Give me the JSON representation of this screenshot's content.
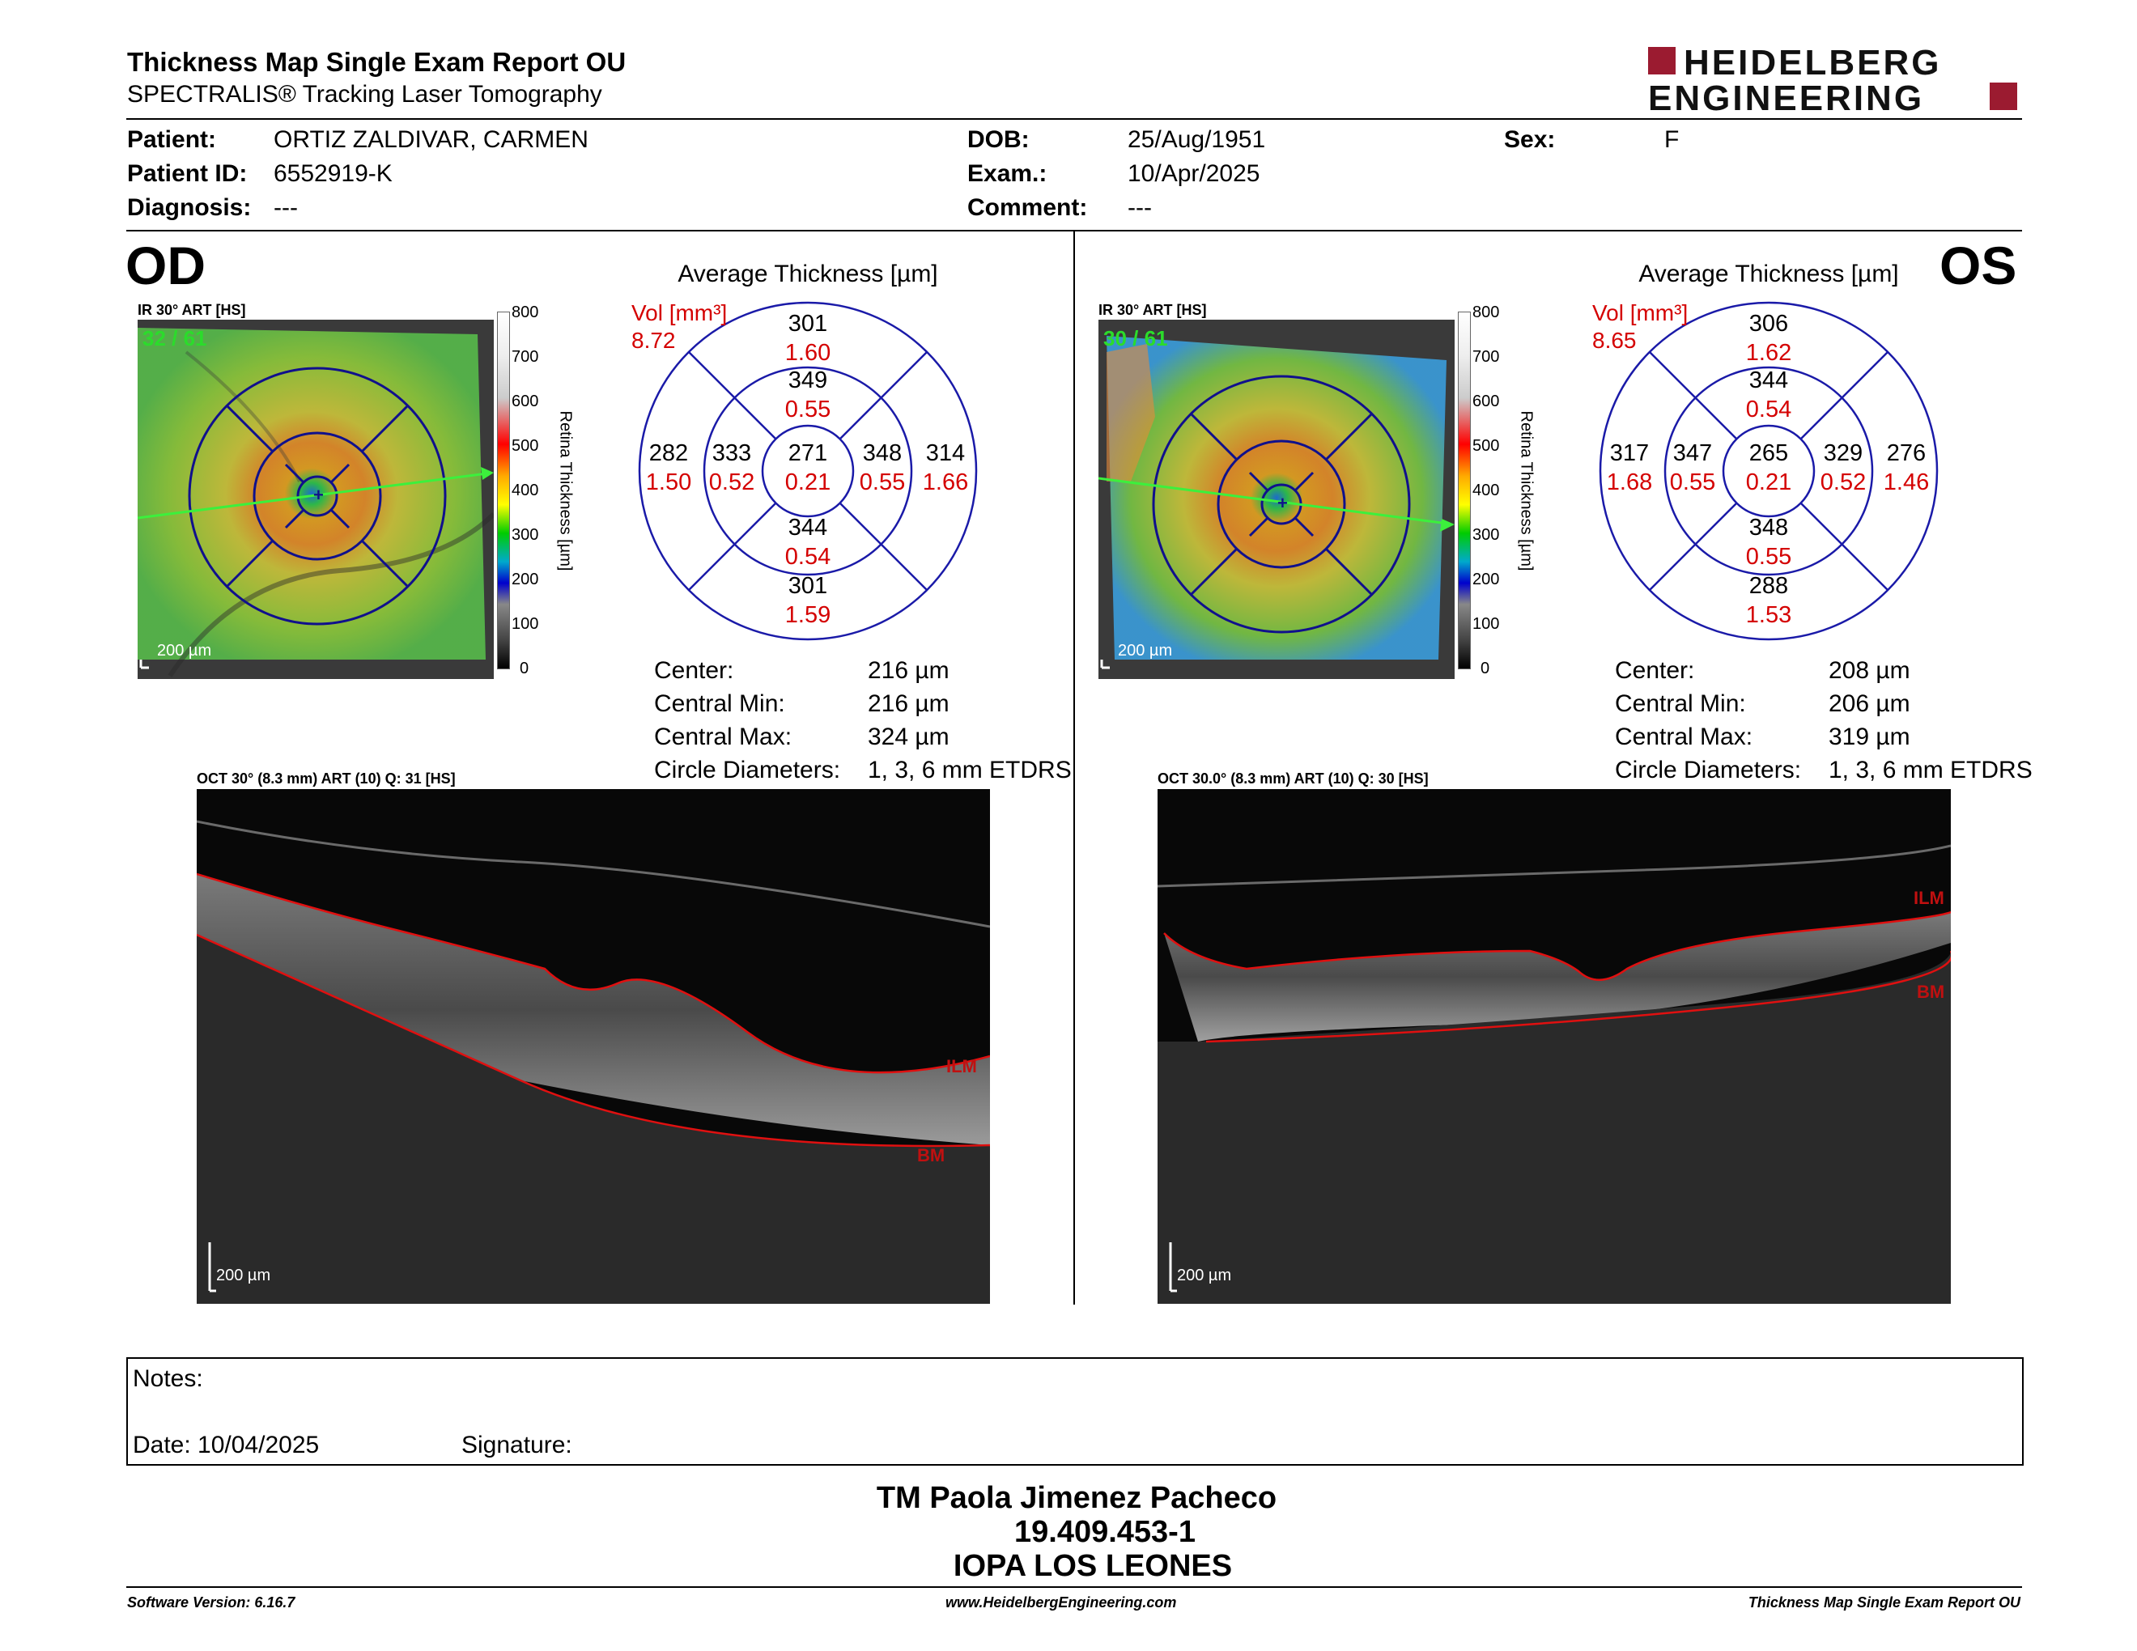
{
  "header": {
    "title": "Thickness Map Single Exam Report OU",
    "subtitle": "SPECTRALIS® Tracking Laser Tomography",
    "logo_line1": "HEIDELBERG",
    "logo_line2": "ENGINEERING"
  },
  "patient": {
    "patient_label": "Patient:",
    "patient_value": "ORTIZ ZALDIVAR, CARMEN",
    "id_label": "Patient ID:",
    "id_value": "6552919-K",
    "diag_label": "Diagnosis:",
    "diag_value": "---",
    "dob_label": "DOB:",
    "dob_value": "25/Aug/1951",
    "exam_label": "Exam.:",
    "exam_value": "10/Apr/2025",
    "comment_label": "Comment:",
    "comment_value": "---",
    "sex_label": "Sex:",
    "sex_value": "F"
  },
  "od": {
    "eye": "OD",
    "ir_title": "IR 30° ART [HS]",
    "frames": "32 / 61",
    "scale": "200 µm",
    "avg_title": "Average Thickness [µm]",
    "vol_label": "Vol [mm³]",
    "vol_total": "8.72",
    "etdrs": {
      "outer_sup": "301",
      "outer_sup_vol": "1.60",
      "inner_sup": "349",
      "inner_sup_vol": "0.55",
      "outer_temp": "282",
      "outer_temp_vol": "1.50",
      "inner_temp": "333",
      "inner_temp_vol": "0.52",
      "center": "271",
      "center_vol": "0.21",
      "inner_nas": "348",
      "inner_nas_vol": "0.55",
      "outer_nas": "314",
      "outer_nas_vol": "1.66",
      "inner_inf": "344",
      "inner_inf_vol": "0.54",
      "outer_inf": "301",
      "outer_inf_vol": "1.59"
    },
    "stats": {
      "center_label": "Center:",
      "center_value": "216 µm",
      "min_label": "Central Min:",
      "min_value": "216 µm",
      "max_label": "Central Max:",
      "max_value": "324 µm",
      "circ_label": "Circle Diameters:",
      "circ_value": "1, 3, 6 mm ETDRS"
    },
    "oct_title": "OCT 30° (8.3 mm) ART (10) Q: 31 [HS]",
    "oct_scale": "200 µm",
    "ilm": "ILM",
    "bm": "BM"
  },
  "os": {
    "eye": "OS",
    "ir_title": "IR 30° ART [HS]",
    "frames": "30 / 61",
    "scale": "200 µm",
    "avg_title": "Average Thickness [µm]",
    "vol_label": "Vol [mm³]",
    "vol_total": "8.65",
    "etdrs": {
      "outer_sup": "306",
      "outer_sup_vol": "1.62",
      "inner_sup": "344",
      "inner_sup_vol": "0.54",
      "outer_temp": "317",
      "outer_temp_vol": "1.68",
      "inner_temp": "347",
      "inner_temp_vol": "0.55",
      "center": "265",
      "center_vol": "0.21",
      "inner_nas": "329",
      "inner_nas_vol": "0.52",
      "outer_nas": "276",
      "outer_nas_vol": "1.46",
      "inner_inf": "348",
      "inner_inf_vol": "0.55",
      "outer_inf": "288",
      "outer_inf_vol": "1.53"
    },
    "stats": {
      "center_label": "Center:",
      "center_value": "208 µm",
      "min_label": "Central Min:",
      "min_value": "206 µm",
      "max_label": "Central Max:",
      "max_value": "319 µm",
      "circ_label": "Circle Diameters:",
      "circ_value": "1, 3, 6 mm ETDRS"
    },
    "oct_title": "OCT 30.0° (8.3 mm) ART (10) Q: 30 [HS]",
    "oct_scale": "200 µm",
    "ilm": "ILM",
    "bm": "BM"
  },
  "colorbar": {
    "ticks": [
      "800",
      "700",
      "600",
      "500",
      "400",
      "300",
      "200",
      "100",
      "0"
    ],
    "label": "Retina Thickness [µm]"
  },
  "notes": {
    "notes_label": "Notes:",
    "date_label": "Date: 10/04/2025",
    "signature_label": "Signature:"
  },
  "signer": {
    "name": "TM Paola Jimenez Pacheco",
    "rut": "19.409.453-1",
    "org": "IOPA LOS LEONES"
  },
  "footer": {
    "version": "Software Version: 6.16.7",
    "website": "www.HeidelbergEngineering.com",
    "report": "Thickness Map Single Exam Report OU"
  },
  "colors": {
    "grid_blue": "#1a1aa8",
    "volume_red": "#d40000",
    "logo_red": "#9b1b30",
    "frame_green": "#2bdc2b"
  }
}
